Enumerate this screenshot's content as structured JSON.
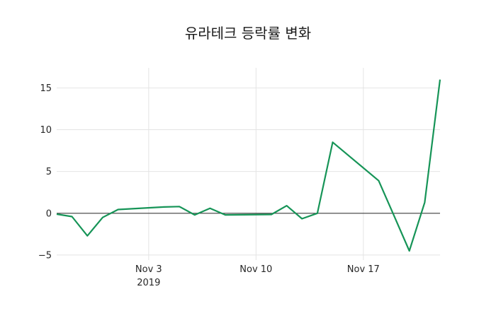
{
  "chart_data": {
    "type": "line",
    "title": "유라테크 등락률 변화",
    "series": [
      {
        "name": "등락률",
        "color": "#169457",
        "dates": [
          "Oct 28",
          "Oct 29",
          "Oct 30",
          "Oct 31",
          "Nov 1",
          "Nov 4",
          "Nov 5",
          "Nov 6",
          "Nov 7",
          "Nov 8",
          "Nov 11",
          "Nov 12",
          "Nov 13",
          "Nov 14",
          "Nov 15",
          "Nov 18",
          "Nov 19",
          "Nov 20",
          "Nov 21",
          "Nov 22"
        ],
        "x_days": [
          0,
          1,
          2,
          3,
          4,
          7,
          8,
          9,
          10,
          11,
          14,
          15,
          16,
          17,
          18,
          21,
          22,
          23,
          24,
          25
        ],
        "values": [
          -0.1,
          -0.4,
          -2.7,
          -0.5,
          0.45,
          0.75,
          0.8,
          -0.2,
          0.6,
          -0.2,
          -0.15,
          0.9,
          -0.65,
          0.0,
          8.5,
          3.9,
          -0.3,
          -4.5,
          1.3,
          16.0
        ]
      }
    ],
    "xlim": [
      0,
      25
    ],
    "ylim": [
      -5.6,
      17.4
    ],
    "x_ticks": [
      {
        "day": 6,
        "label": "Nov 3",
        "sublabel": "2019"
      },
      {
        "day": 13,
        "label": "Nov 10",
        "sublabel": ""
      },
      {
        "day": 20,
        "label": "Nov 17",
        "sublabel": ""
      }
    ],
    "y_ticks": [
      {
        "value": -5,
        "label": "−5"
      },
      {
        "value": 0,
        "label": "0"
      },
      {
        "value": 5,
        "label": "5"
      },
      {
        "value": 10,
        "label": "10"
      },
      {
        "value": 15,
        "label": "15"
      }
    ],
    "grid": true,
    "legend": "none",
    "zero_line": true,
    "colors": {
      "line": "#169457",
      "grid": "#e4e4e4",
      "zero_line": "#3c3c3c",
      "text": "#262626",
      "title_text": "#1a1a1a",
      "background": "#ffffff"
    }
  }
}
